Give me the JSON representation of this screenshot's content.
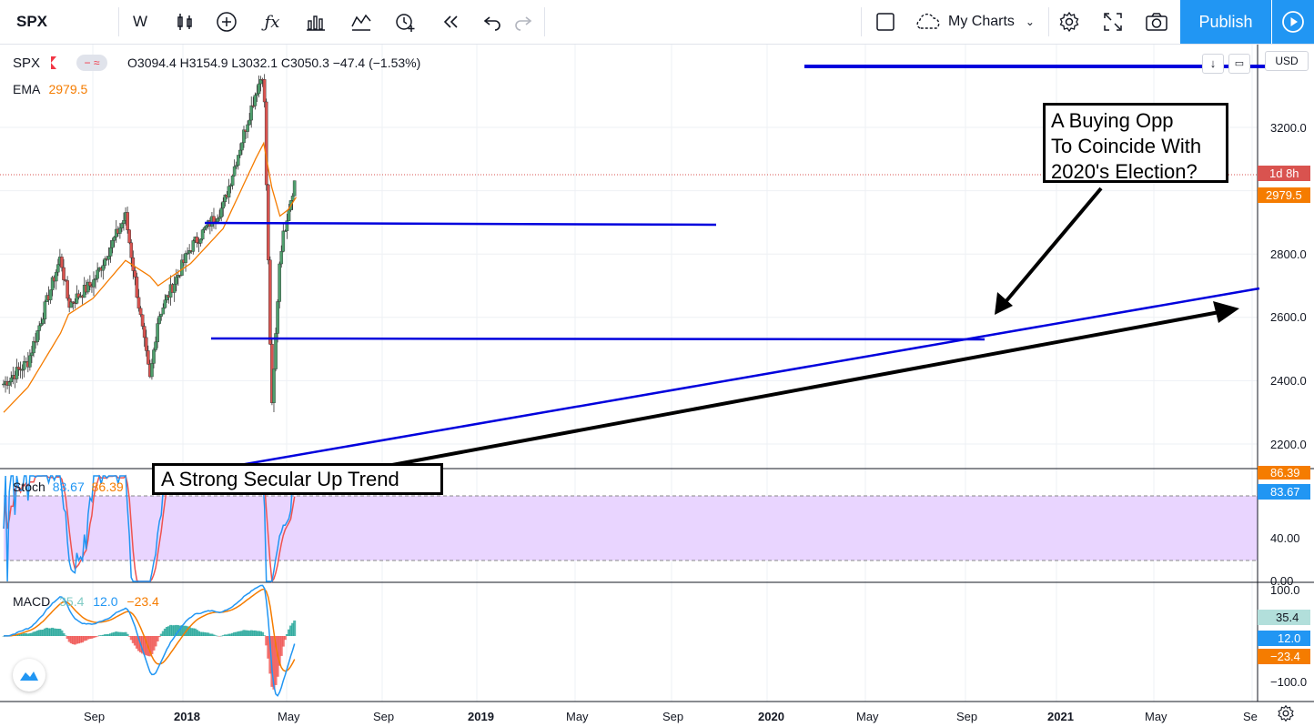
{
  "toolbar": {
    "symbol": "SPX",
    "interval": "W",
    "my_charts": "My Charts",
    "publish": "Publish"
  },
  "legend": {
    "symbol": "SPX",
    "ohlc": "O3094.4 H3154.9 L3032.1 C3050.3 −47.4 (−1.53%)",
    "ema_label": "EMA",
    "ema_value": "2979.5",
    "stoch_label": "Stoch",
    "stoch_k": "83.67",
    "stoch_d": "86.39",
    "macd_label": "MACD",
    "macd_hist": "35.4",
    "macd_line": "12.0",
    "macd_signal": "−23.4",
    "currency": "USD"
  },
  "price_axis": {
    "ticks": [
      "3200.0",
      "3000.0",
      "2800.0",
      "2600.0",
      "2400.0",
      "2200.0"
    ],
    "countdown": "1d 8h",
    "ema_tag": "2979.5"
  },
  "stoch_axis": {
    "ticks": [
      "40.00",
      "0.00"
    ],
    "d_tag": "86.39",
    "k_tag": "83.67"
  },
  "macd_axis": {
    "ticks": [
      "100.0",
      "−100.0"
    ],
    "hist_tag": "35.4",
    "line_tag": "12.0",
    "signal_tag": "−23.4"
  },
  "time_axis": [
    "Sep",
    "2018",
    "May",
    "Sep",
    "2019",
    "May",
    "Sep",
    "2020",
    "May",
    "Sep",
    "2021",
    "May",
    "Se"
  ],
  "annotations": {
    "buying": [
      "A Buying Opp",
      "To Coincide With",
      "2020's Election?"
    ],
    "trend": "A Strong Secular Up Trend"
  },
  "colors": {
    "up": "#4e9e6c",
    "down": "#d9534f",
    "ema": "#f57c00",
    "trendline": "#0000dd",
    "stoch_k": "#2196f3",
    "stoch_d": "#ef5350",
    "stoch_band": "#e9d5ff",
    "macd_line": "#2196f3",
    "macd_signal": "#f57c00",
    "accent": "#2196f3"
  },
  "chart_data": {
    "type": "line",
    "symbol": "SPX",
    "interval": "weekly",
    "x_dates": [
      "2017-06",
      "2017-09",
      "2018-01",
      "2018-02",
      "2018-05",
      "2018-09",
      "2018-12",
      "2019-01",
      "2019-05",
      "2019-09",
      "2020-01",
      "2020-02",
      "2020-03",
      "2020-04",
      "2020-05",
      "2020-06"
    ],
    "series": [
      {
        "name": "SPX",
        "values": [
          2390,
          2460,
          2790,
          2640,
          2710,
          2920,
          2400,
          2600,
          2820,
          2950,
          3310,
          3380,
          2300,
          2800,
          2940,
          3050
        ]
      },
      {
        "name": "EMA",
        "values": [
          2300,
          2380,
          2550,
          2610,
          2660,
          2780,
          2730,
          2700,
          2770,
          2880,
          3100,
          3150,
          3010,
          2920,
          2940,
          2979.5
        ]
      }
    ],
    "last_bar": {
      "open": 3094.4,
      "high": 3154.9,
      "low": 3032.1,
      "close": 3050.3,
      "change": -47.4,
      "change_pct": -1.53
    },
    "ylim": [
      2150,
      3430
    ],
    "stochastic": {
      "k": 83.67,
      "d": 86.39,
      "bands": [
        20,
        80
      ]
    },
    "macd": {
      "histogram": 35.4,
      "macd": 12.0,
      "signal": -23.4
    },
    "horizontal_lines": [
      3390,
      2895,
      2530
    ],
    "grid": true
  }
}
